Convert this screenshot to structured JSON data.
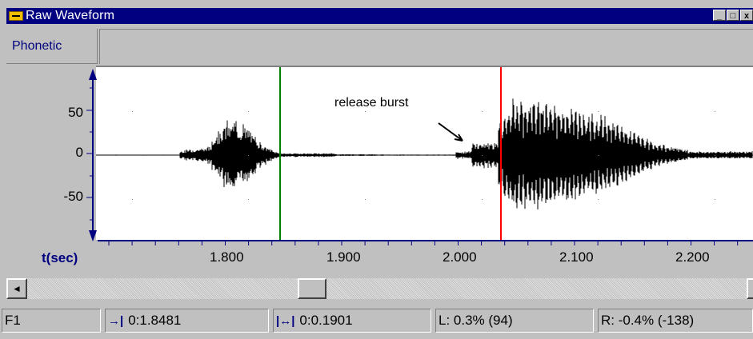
{
  "window": {
    "title": "Raw Waveform",
    "controls": [
      "_",
      "□",
      "x"
    ]
  },
  "tier": {
    "label": "Phonetic"
  },
  "plot": {
    "y_ticks": [
      "50",
      "0",
      "-50"
    ],
    "x_axis_label": "t(sec)",
    "x_ticks": [
      "1.800",
      "1.900",
      "2.000",
      "2.100",
      "2.200"
    ],
    "annotation": "release burst",
    "cursor_colors": {
      "left": "#008000",
      "right": "#ff0000"
    },
    "axis_color": "#000080"
  },
  "scrollbar": {
    "left_arrow": "◄",
    "right_arrow": "►",
    "position": 0.4
  },
  "status": {
    "field1": "F1",
    "cursor_time": "0:1.8481",
    "selection_length": "0:0.1901",
    "left_value": "L:  0.3%  (94)",
    "right_value": "R:  -0.4%  (-138)",
    "icons": {
      "cursor_time": "→|",
      "selection_length": "|↔|"
    }
  }
}
